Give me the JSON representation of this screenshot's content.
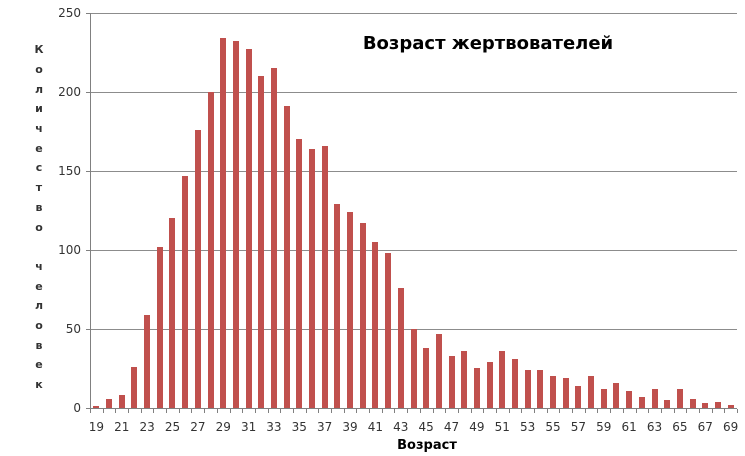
{
  "title": "Возраст жертвователей",
  "chart_data": {
    "type": "bar",
    "title": "Возраст жертвователей",
    "xlabel": "Возраст",
    "ylabel": "Количество человек",
    "categories": [
      19,
      20,
      21,
      22,
      23,
      24,
      25,
      26,
      27,
      28,
      29,
      30,
      31,
      32,
      33,
      34,
      35,
      36,
      37,
      38,
      39,
      40,
      41,
      42,
      43,
      44,
      45,
      46,
      47,
      48,
      49,
      50,
      51,
      52,
      53,
      54,
      55,
      56,
      57,
      58,
      59,
      60,
      61,
      62,
      63,
      64,
      65,
      66,
      67,
      68,
      69
    ],
    "values": [
      1,
      6,
      8,
      26,
      59,
      102,
      120,
      147,
      176,
      200,
      234,
      232,
      227,
      210,
      215,
      191,
      170,
      164,
      166,
      129,
      124,
      117,
      105,
      98,
      76,
      50,
      38,
      47,
      33,
      36,
      25,
      29,
      36,
      31,
      24,
      24,
      20,
      19,
      14,
      20,
      12,
      16,
      11,
      7,
      12,
      5,
      12,
      6,
      3,
      4,
      2
    ],
    "ylim": [
      0,
      250
    ],
    "yticks": [
      0,
      50,
      100,
      150,
      200,
      250
    ],
    "xtick_labels_shown": [
      19,
      21,
      23,
      25,
      27,
      29,
      31,
      33,
      35,
      37,
      39,
      41,
      43,
      45,
      47,
      49,
      51,
      53,
      55,
      57,
      59,
      61,
      63,
      65,
      67,
      69
    ],
    "grid": "horizontal",
    "legend": "none",
    "colors": {
      "bar": "#C0504D",
      "gridline": "#8C8C8C",
      "axis": "#808080",
      "text": "#333333",
      "title": "#000000",
      "background": "#FFFFFF"
    }
  }
}
